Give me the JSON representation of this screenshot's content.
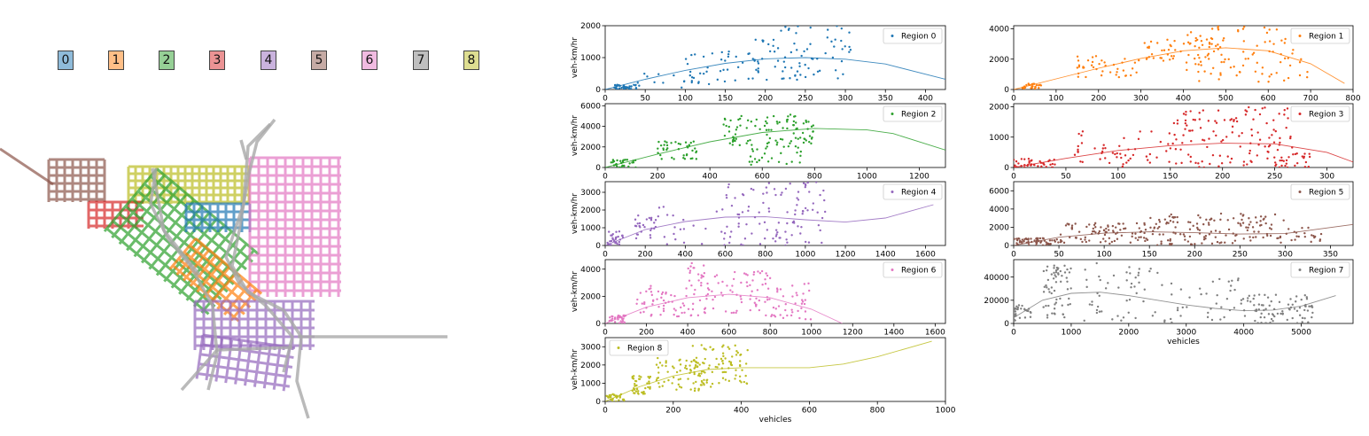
{
  "figure": {
    "region_labels": [
      "0",
      "1",
      "2",
      "3",
      "4",
      "5",
      "6",
      "7",
      "8"
    ],
    "region_colors": [
      "#1f77b4",
      "#ff7f0e",
      "#2ca02c",
      "#d62728",
      "#9467bd",
      "#8c564b",
      "#e377c2",
      "#7f7f7f",
      "#bcbd22"
    ]
  },
  "chart_data": [
    {
      "type": "scatter",
      "legend": "Region 0",
      "ylabel": "veh-km/hr",
      "xlabel": "",
      "color": "#1f77b4",
      "xlim": [
        0,
        425
      ],
      "ylim": [
        0,
        2000
      ],
      "xticks": [
        0,
        50,
        100,
        150,
        200,
        250,
        300,
        350,
        400
      ],
      "yticks": [
        0,
        1000,
        2000
      ],
      "cloud": [
        [
          10,
          40,
          0,
          150,
          40
        ],
        [
          40,
          140,
          50,
          500,
          15
        ],
        [
          100,
          200,
          200,
          1200,
          35
        ],
        [
          180,
          310,
          300,
          2000,
          80
        ]
      ],
      "fit": [
        [
          0,
          0
        ],
        [
          50,
          320
        ],
        [
          100,
          600
        ],
        [
          150,
          820
        ],
        [
          200,
          960
        ],
        [
          250,
          1000
        ],
        [
          300,
          950
        ],
        [
          350,
          800
        ],
        [
          425,
          320
        ]
      ]
    },
    {
      "type": "scatter",
      "legend": "Region 1",
      "ylabel": "",
      "xlabel": "",
      "color": "#ff7f0e",
      "xlim": [
        0,
        800
      ],
      "ylim": [
        0,
        4200
      ],
      "xticks": [
        0,
        100,
        200,
        300,
        400,
        500,
        600,
        700,
        800
      ],
      "yticks": [
        0,
        2000,
        4000
      ],
      "cloud": [
        [
          20,
          70,
          0,
          400,
          30
        ],
        [
          150,
          300,
          800,
          2200,
          40
        ],
        [
          300,
          500,
          1800,
          3400,
          60
        ],
        [
          400,
          700,
          500,
          4200,
          80
        ]
      ],
      "fit": [
        [
          0,
          0
        ],
        [
          100,
          700
        ],
        [
          200,
          1400
        ],
        [
          300,
          2050
        ],
        [
          400,
          2550
        ],
        [
          500,
          2750
        ],
        [
          600,
          2550
        ],
        [
          700,
          1700
        ],
        [
          780,
          400
        ]
      ]
    },
    {
      "type": "scatter",
      "legend": "Region 2",
      "ylabel": "veh-km/hr",
      "xlabel": "",
      "color": "#2ca02c",
      "xlim": [
        0,
        1300
      ],
      "ylim": [
        0,
        6200
      ],
      "xticks": [
        0,
        200,
        400,
        600,
        800,
        1000,
        1200
      ],
      "yticks": [
        0,
        2000,
        4000,
        6000
      ],
      "cloud": [
        [
          20,
          120,
          0,
          800,
          30
        ],
        [
          200,
          350,
          800,
          2600,
          40
        ],
        [
          450,
          800,
          2000,
          5200,
          100
        ],
        [
          550,
          750,
          200,
          2000,
          25
        ]
      ],
      "fit": [
        [
          0,
          0
        ],
        [
          200,
          1300
        ],
        [
          400,
          2500
        ],
        [
          600,
          3400
        ],
        [
          800,
          3800
        ],
        [
          1000,
          3650
        ],
        [
          1100,
          3300
        ],
        [
          1300,
          1700
        ]
      ]
    },
    {
      "type": "scatter",
      "legend": "Region 3",
      "ylabel": "",
      "xlabel": "",
      "color": "#d62728",
      "xlim": [
        0,
        325
      ],
      "ylim": [
        0,
        2100
      ],
      "xticks": [
        0,
        50,
        100,
        150,
        200,
        250,
        300
      ],
      "yticks": [
        0,
        1000,
        2000
      ],
      "cloud": [
        [
          0,
          40,
          0,
          300,
          40
        ],
        [
          50,
          150,
          0,
          1200,
          50
        ],
        [
          150,
          270,
          0,
          2000,
          130
        ],
        [
          250,
          285,
          0,
          500,
          20
        ]
      ],
      "fit": [
        [
          0,
          0
        ],
        [
          50,
          300
        ],
        [
          100,
          560
        ],
        [
          150,
          720
        ],
        [
          200,
          800
        ],
        [
          250,
          780
        ],
        [
          300,
          500
        ],
        [
          325,
          180
        ]
      ]
    },
    {
      "type": "scatter",
      "legend": "Region 4",
      "ylabel": "veh-km/hr",
      "xlabel": "",
      "color": "#9467bd",
      "xlim": [
        0,
        1700
      ],
      "ylim": [
        0,
        3600
      ],
      "xticks": [
        0,
        200,
        400,
        600,
        800,
        1000,
        1200,
        1400,
        1600
      ],
      "yticks": [
        0,
        1000,
        2000,
        3000
      ],
      "cloud": [
        [
          10,
          100,
          0,
          800,
          30
        ],
        [
          150,
          250,
          400,
          1800,
          25
        ],
        [
          250,
          600,
          0,
          2400,
          25
        ],
        [
          600,
          1100,
          0,
          3600,
          100
        ]
      ],
      "fit": [
        [
          0,
          0
        ],
        [
          200,
          900
        ],
        [
          400,
          1350
        ],
        [
          600,
          1600
        ],
        [
          800,
          1620
        ],
        [
          1000,
          1450
        ],
        [
          1200,
          1320
        ],
        [
          1400,
          1550
        ],
        [
          1640,
          2300
        ]
      ]
    },
    {
      "type": "scatter",
      "legend": "Region 5",
      "ylabel": "",
      "xlabel": "",
      "color": "#8c564b",
      "xlim": [
        0,
        375
      ],
      "ylim": [
        0,
        7000
      ],
      "xticks": [
        0,
        50,
        100,
        150,
        200,
        250,
        300,
        350
      ],
      "yticks": [
        0,
        2000,
        4000,
        6000
      ],
      "cloud": [
        [
          0,
          50,
          0,
          800,
          60
        ],
        [
          50,
          150,
          200,
          2500,
          90
        ],
        [
          150,
          300,
          0,
          3500,
          140
        ],
        [
          300,
          345,
          0,
          2000,
          20
        ]
      ],
      "fit": [
        [
          0,
          0
        ],
        [
          50,
          900
        ],
        [
          100,
          1350
        ],
        [
          150,
          1500
        ],
        [
          200,
          1400
        ],
        [
          250,
          1250
        ],
        [
          300,
          1300
        ],
        [
          375,
          2300
        ]
      ]
    },
    {
      "type": "scatter",
      "legend": "Region 6",
      "ylabel": "veh-km/hr",
      "xlabel": "",
      "color": "#e377c2",
      "xlim": [
        0,
        1650
      ],
      "ylim": [
        0,
        4700
      ],
      "xticks": [
        0,
        200,
        400,
        600,
        800,
        1000,
        1200,
        1400,
        1600
      ],
      "yticks": [
        0,
        2000,
        4000
      ],
      "cloud": [
        [
          20,
          100,
          0,
          600,
          30
        ],
        [
          150,
          400,
          400,
          2800,
          50
        ],
        [
          400,
          800,
          500,
          4500,
          100
        ],
        [
          800,
          1000,
          0,
          3000,
          40
        ]
      ],
      "fit": [
        [
          0,
          0
        ],
        [
          200,
          1200
        ],
        [
          400,
          1900
        ],
        [
          600,
          2150
        ],
        [
          800,
          1900
        ],
        [
          1000,
          1050
        ],
        [
          1150,
          0
        ]
      ]
    },
    {
      "type": "scatter",
      "legend": "Region 7",
      "ylabel": "",
      "xlabel": "vehicles",
      "color": "#7f7f7f",
      "xlim": [
        0,
        5900
      ],
      "ylim": [
        0,
        55000
      ],
      "xticks": [
        0,
        1000,
        2000,
        3000,
        4000,
        5000
      ],
      "yticks": [
        0,
        20000,
        40000
      ],
      "cloud": [
        [
          0,
          300,
          2000,
          16000,
          30
        ],
        [
          500,
          1000,
          5000,
          50000,
          60
        ],
        [
          1200,
          2600,
          2000,
          52000,
          50
        ],
        [
          2600,
          4000,
          0,
          40000,
          40
        ],
        [
          4000,
          5200,
          0,
          25000,
          80
        ]
      ],
      "fit": [
        [
          0,
          5000
        ],
        [
          500,
          20000
        ],
        [
          1000,
          26000
        ],
        [
          1500,
          27000
        ],
        [
          2000,
          24000
        ],
        [
          2500,
          20000
        ],
        [
          3000,
          16000
        ],
        [
          3500,
          13000
        ],
        [
          4000,
          11000
        ],
        [
          4500,
          11500
        ],
        [
          5000,
          15000
        ],
        [
          5600,
          24000
        ]
      ]
    },
    {
      "type": "scatter",
      "legend": "Region 8",
      "ylabel": "veh-km/hr",
      "xlabel": "vehicles",
      "color": "#bcbd22",
      "xlim": [
        0,
        1000
      ],
      "ylim": [
        0,
        3500
      ],
      "xticks": [
        0,
        200,
        400,
        600,
        800,
        1000
      ],
      "yticks": [
        0,
        1000,
        2000,
        3000
      ],
      "cloud": [
        [
          0,
          60,
          0,
          400,
          30
        ],
        [
          80,
          140,
          400,
          1400,
          40
        ],
        [
          150,
          300,
          500,
          2400,
          60
        ],
        [
          250,
          420,
          800,
          3100,
          90
        ]
      ],
      "fit": [
        [
          0,
          0
        ],
        [
          100,
          800
        ],
        [
          200,
          1400
        ],
        [
          300,
          1750
        ],
        [
          400,
          1850
        ],
        [
          600,
          1850
        ],
        [
          700,
          2050
        ],
        [
          800,
          2450
        ],
        [
          960,
          3300
        ]
      ]
    }
  ]
}
